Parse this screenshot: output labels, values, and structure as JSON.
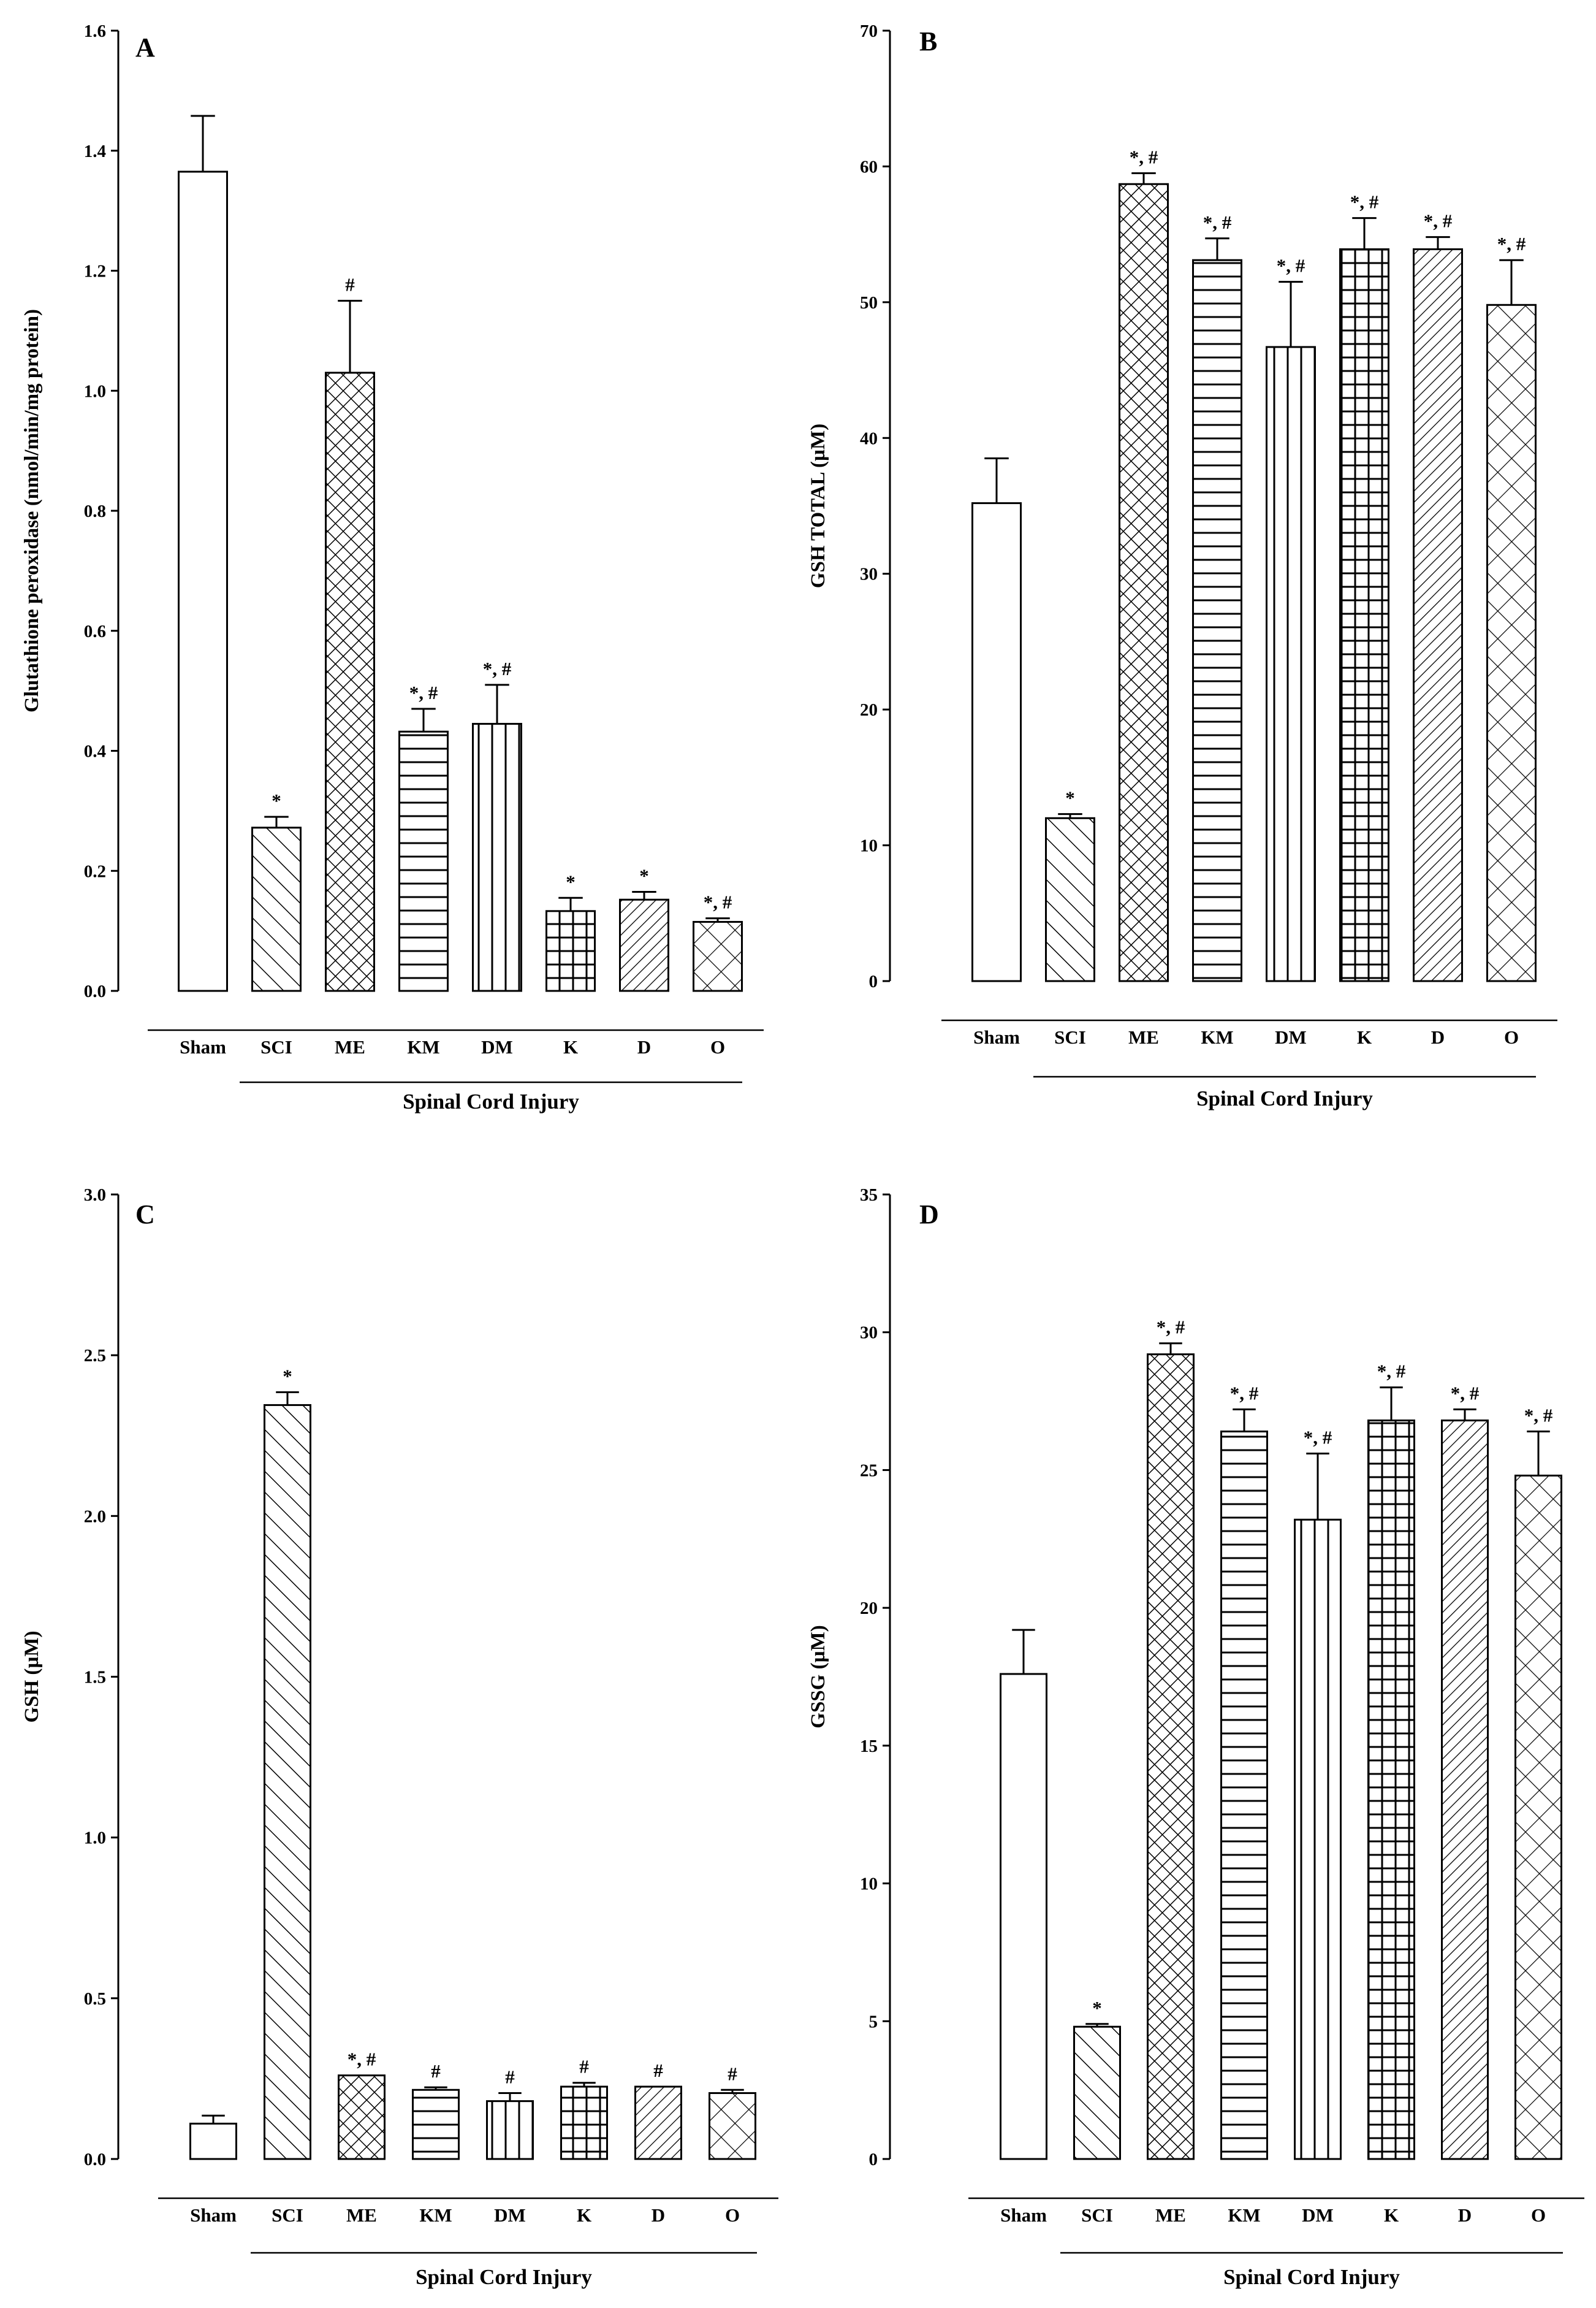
{
  "chart_data": [
    {
      "type": "bar",
      "panel": "A",
      "title": "",
      "xlabel": "",
      "ylabel": "Glutathione peroxidase (nmol/min/mg protein)",
      "ylim": [
        0,
        1.6
      ],
      "yticks": [
        "0.0",
        "0.2",
        "0.4",
        "0.6",
        "0.8",
        "1.0",
        "1.2",
        "1.4",
        "1.6"
      ],
      "categories": [
        "Sham",
        "SCI",
        "ME",
        "KM",
        "DM",
        "K",
        "D",
        "O"
      ],
      "values": [
        1.365,
        0.272,
        1.03,
        0.432,
        0.445,
        0.133,
        0.152,
        0.115
      ],
      "errors": [
        0.093,
        0.018,
        0.12,
        0.038,
        0.065,
        0.022,
        0.013,
        0.006
      ],
      "annotations": [
        "",
        "*",
        "#",
        "*, #",
        "*, #",
        "*",
        "*",
        "*, #"
      ],
      "patterns": [
        "none",
        "diag-up",
        "crosshatch",
        "horizontal",
        "vertical",
        "grid",
        "diag-down",
        "diag-cross"
      ],
      "group_label": "Spinal Cord Injury"
    },
    {
      "type": "bar",
      "panel": "B",
      "title": "",
      "xlabel": "",
      "ylabel": "GSH TOTAL (µM)",
      "ylim": [
        0,
        70
      ],
      "yticks": [
        "0",
        "10",
        "20",
        "30",
        "40",
        "50",
        "60",
        "70"
      ],
      "categories": [
        "Sham",
        "SCI",
        "ME",
        "KM",
        "DM",
        "K",
        "D",
        "O"
      ],
      "values": [
        35.2,
        12.0,
        58.7,
        53.1,
        46.7,
        53.9,
        53.9,
        49.8
      ],
      "errors": [
        3.3,
        0.3,
        0.8,
        1.6,
        4.8,
        2.3,
        0.9,
        3.3
      ],
      "annotations": [
        "",
        "*",
        "*, #",
        "*, #",
        "*, #",
        "*, #",
        "*, #",
        "*, #"
      ],
      "patterns": [
        "none",
        "diag-up",
        "crosshatch",
        "horizontal",
        "vertical",
        "grid",
        "diag-down",
        "diag-cross"
      ],
      "group_label": "Spinal Cord Injury"
    },
    {
      "type": "bar",
      "panel": "C",
      "title": "",
      "xlabel": "",
      "ylabel": "GSH (µM)",
      "ylim": [
        0,
        3.0
      ],
      "yticks": [
        "0.0",
        "0.5",
        "1.0",
        "1.5",
        "2.0",
        "2.5",
        "3.0"
      ],
      "categories": [
        "Sham",
        "SCI",
        "ME",
        "KM",
        "DM",
        "K",
        "D",
        "O"
      ],
      "values": [
        0.11,
        2.345,
        0.26,
        0.215,
        0.18,
        0.225,
        0.225,
        0.205
      ],
      "errors": [
        0.025,
        0.04,
        0.0,
        0.008,
        0.025,
        0.012,
        0.0,
        0.01
      ],
      "annotations": [
        "",
        "*",
        "*, #",
        "#",
        "#",
        "#",
        "#",
        "#"
      ],
      "patterns": [
        "none",
        "diag-up",
        "crosshatch",
        "horizontal",
        "vertical",
        "grid",
        "diag-down",
        "diag-cross"
      ],
      "group_label": "Spinal Cord Injury"
    },
    {
      "type": "bar",
      "panel": "D",
      "title": "",
      "xlabel": "",
      "ylabel": "GSSG (µM)",
      "ylim": [
        0,
        35
      ],
      "yticks": [
        "0",
        "5",
        "10",
        "15",
        "20",
        "25",
        "30",
        "35"
      ],
      "categories": [
        "Sham",
        "SCI",
        "ME",
        "KM",
        "DM",
        "K",
        "D",
        "O"
      ],
      "values": [
        17.6,
        4.8,
        29.2,
        26.4,
        23.2,
        26.8,
        26.8,
        24.8
      ],
      "errors": [
        1.6,
        0.1,
        0.4,
        0.8,
        2.4,
        1.2,
        0.4,
        1.6
      ],
      "annotations": [
        "",
        "*",
        "*, #",
        "*, #",
        "*, #",
        "*, #",
        "*, #",
        "*, #"
      ],
      "patterns": [
        "none",
        "diag-up",
        "crosshatch",
        "horizontal",
        "vertical",
        "grid",
        "diag-down",
        "diag-cross"
      ],
      "group_label": "Spinal Cord Injury"
    }
  ]
}
